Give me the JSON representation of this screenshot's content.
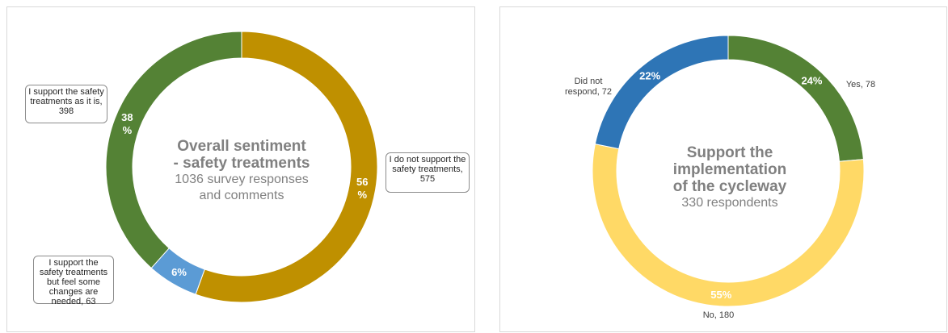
{
  "chart_data": [
    {
      "type": "pie",
      "subtype": "donut",
      "title_line1": "Overall sentiment",
      "title_line2": "- safety treatments",
      "subtitle_line1": "1036 survey responses",
      "subtitle_line2": "and comments",
      "slices": [
        {
          "label": "I do not support the safety treatments, 575",
          "value": 575,
          "pct_label": "56 %",
          "color": "#bf9000"
        },
        {
          "label": "I support the safety treatments but feel some changes are needed, 63",
          "value": 63,
          "pct_label": "6%",
          "color": "#5b9bd5"
        },
        {
          "label": "I support the safety treatments as it is, 398",
          "value": 398,
          "pct_label": "38 %",
          "color": "#548235"
        }
      ]
    },
    {
      "type": "pie",
      "subtype": "donut",
      "title_line1": "Support the",
      "title_line2": "implementation",
      "title_line3": "of the cycleway",
      "subtitle_line1": "330 respondents",
      "slices": [
        {
          "label": "Yes, 78",
          "value": 78,
          "pct_label": "24%",
          "color": "#548235"
        },
        {
          "label": "No, 180",
          "value": 180,
          "pct_label": "55%",
          "color": "#ffd966"
        },
        {
          "label": "Did not respond, 72",
          "value": 72,
          "pct_label": "22%",
          "color": "#2e75b6"
        }
      ]
    }
  ]
}
